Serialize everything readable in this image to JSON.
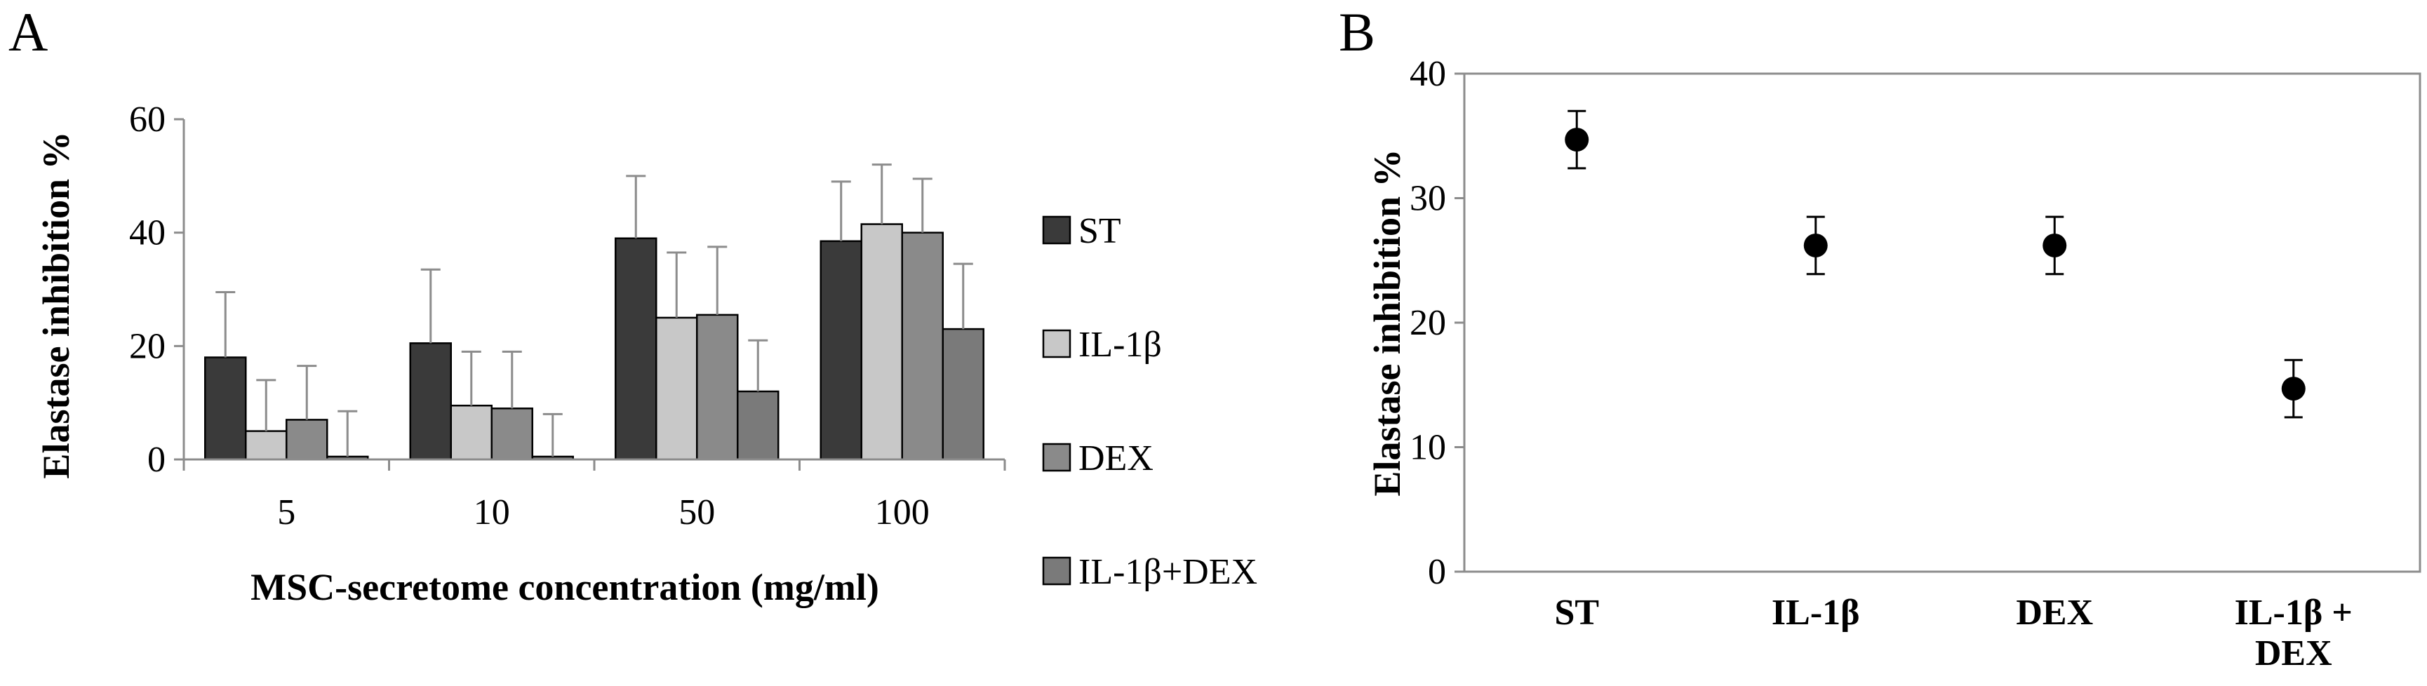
{
  "colors": {
    "ST": "#3a3a3a",
    "IL-1β": "#c8c8c8",
    "DEX": "#8a8a8a",
    "IL-1β+DEX": "#7a7a7a",
    "axis": "#8c8c8c",
    "marker": "#000000"
  },
  "chart_data": [
    {
      "panel": "A",
      "type": "bar",
      "title": "",
      "xlabel": "MSC-secretome concentration (mg/ml)",
      "ylabel": "Elastase inhibition %",
      "ylim": [
        0,
        60
      ],
      "yticks": [
        0,
        20,
        40,
        60
      ],
      "categories": [
        "5",
        "10",
        "50",
        "100"
      ],
      "legend": [
        "ST",
        "IL-1β",
        "DEX",
        "IL-1β+DEX"
      ],
      "legend_position": "right",
      "series": [
        {
          "name": "ST",
          "values": [
            18,
            20.5,
            39,
            38.5
          ],
          "errors": [
            11.5,
            13,
            11,
            10.5
          ]
        },
        {
          "name": "IL-1β",
          "values": [
            5,
            9.5,
            25,
            41.5
          ],
          "errors": [
            9,
            9.5,
            11.5,
            10.5
          ]
        },
        {
          "name": "DEX",
          "values": [
            7,
            9,
            25.5,
            40
          ],
          "errors": [
            9.5,
            10,
            12,
            9.5
          ]
        },
        {
          "name": "IL-1β+DEX",
          "values": [
            0.5,
            0.5,
            12,
            23
          ],
          "errors": [
            8,
            7.5,
            9,
            11.5
          ]
        }
      ]
    },
    {
      "panel": "B",
      "type": "scatter",
      "title": "",
      "xlabel": "",
      "ylabel": "Elastase inhibition %",
      "ylim": [
        0,
        40
      ],
      "yticks": [
        0,
        10,
        20,
        30,
        40
      ],
      "categories": [
        [
          "ST"
        ],
        [
          "IL-1β"
        ],
        [
          "DEX"
        ],
        [
          "IL-1β +",
          "DEX"
        ]
      ],
      "values": [
        34.7,
        26.2,
        26.2,
        14.7
      ],
      "errors": [
        2.3,
        2.3,
        2.3,
        2.3
      ]
    }
  ]
}
